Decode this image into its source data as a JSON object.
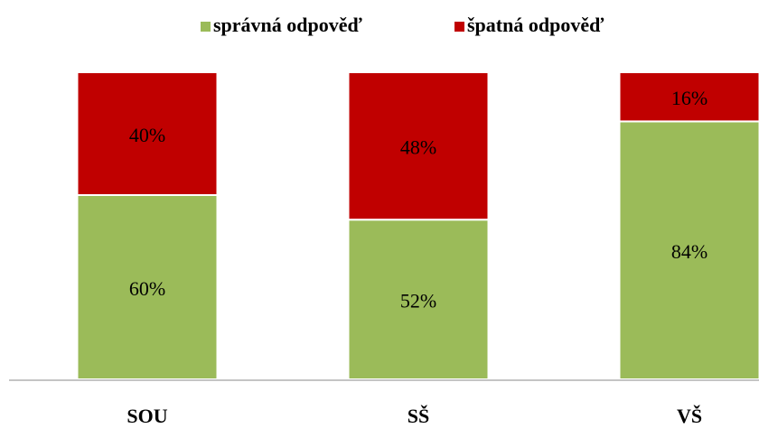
{
  "chart_data": {
    "type": "stacked_bar_100",
    "categories": [
      "SOU",
      "SŠ",
      "VŠ"
    ],
    "series": [
      {
        "name": "správná odpověď",
        "color": "#9bbb59",
        "values": [
          60,
          52,
          84
        ],
        "value_labels": [
          "60%",
          "52%",
          "84%"
        ]
      },
      {
        "name": "špatná odpověď",
        "color": "#c00000",
        "values": [
          40,
          48,
          16
        ],
        "value_labels": [
          "40%",
          "48%",
          "16%"
        ]
      }
    ],
    "legend": "top"
  }
}
